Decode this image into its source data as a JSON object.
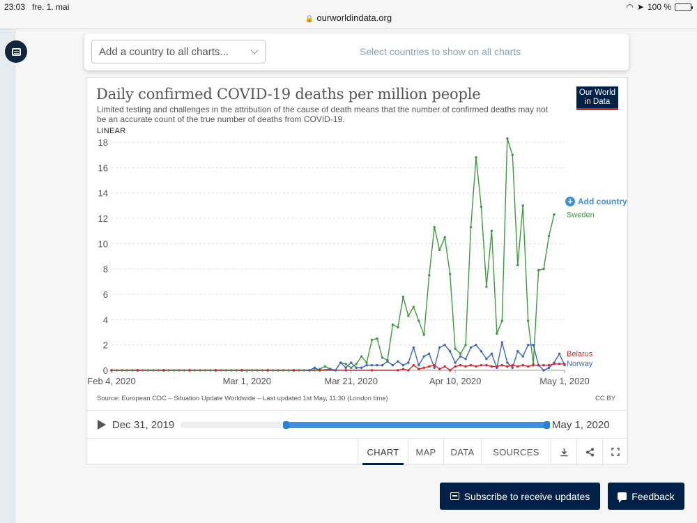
{
  "statusbar": {
    "time": "23:03",
    "date": "fre. 1. mai",
    "battery": "100 %",
    "battery_level": 1.0
  },
  "browser": {
    "url": "ourworldindata.org"
  },
  "selector": {
    "placeholder": "Add a country to all charts...",
    "hint": "Select countries to show on all charts"
  },
  "chart": {
    "title": "Daily confirmed COVID-19 deaths per million people",
    "subtitle": "Limited testing and challenges in the attribution of the cause of death means that the number of confirmed deaths may not be an accurate count of the true number of deaths from COVID-19.",
    "logo": "Our World in Data",
    "scale": "LINEAR",
    "add_country": "Add country",
    "source": "Source: European CDC – Situation Update Worldwide – Last updated 1st May, 11:30 (London time)",
    "license": "CC BY"
  },
  "timeline": {
    "start": "Dec 31, 2019",
    "end": "May 1, 2020",
    "range_start_fraction": 0.285,
    "range_end_fraction": 1.0
  },
  "tabs": [
    "CHART",
    "MAP",
    "DATA",
    "SOURCES"
  ],
  "active_tab": "CHART",
  "footer": {
    "subscribe": "Subscribe to receive updates",
    "feedback": "Feedback"
  },
  "colors": {
    "sweden": "#3c9a3c",
    "belarus": "#cc2a2a",
    "norway": "#3b65b8",
    "accent": "#3d8fe0",
    "navy": "#002147"
  },
  "chart_data": {
    "type": "line",
    "xlabel": "",
    "ylabel": "",
    "x_range": [
      "2020-02-04",
      "2020-05-01"
    ],
    "x_ticks": [
      "Feb 4, 2020",
      "Mar 1, 2020",
      "Mar 21, 2020",
      "Apr 10, 2020",
      "May 1, 2020"
    ],
    "x_tick_dates": [
      "2020-02-04",
      "2020-03-01",
      "2020-03-21",
      "2020-04-10",
      "2020-05-01"
    ],
    "ylim": [
      0,
      18
    ],
    "y_ticks": [
      0,
      2,
      4,
      6,
      8,
      10,
      12,
      14,
      16,
      18
    ],
    "grid": true,
    "legend": "right-end labels",
    "series": [
      {
        "name": "Sweden",
        "color": "#3c9a3c",
        "points": [
          [
            "2020-02-04",
            0
          ],
          [
            "2020-02-05",
            0
          ],
          [
            "2020-02-06",
            0
          ],
          [
            "2020-02-07",
            0
          ],
          [
            "2020-02-08",
            0
          ],
          [
            "2020-02-09",
            0
          ],
          [
            "2020-02-10",
            0
          ],
          [
            "2020-02-11",
            0
          ],
          [
            "2020-02-12",
            0
          ],
          [
            "2020-02-13",
            0
          ],
          [
            "2020-02-14",
            0
          ],
          [
            "2020-02-15",
            0
          ],
          [
            "2020-02-16",
            0
          ],
          [
            "2020-02-17",
            0
          ],
          [
            "2020-02-18",
            0
          ],
          [
            "2020-02-19",
            0
          ],
          [
            "2020-02-20",
            0
          ],
          [
            "2020-02-21",
            0
          ],
          [
            "2020-02-22",
            0
          ],
          [
            "2020-02-23",
            0
          ],
          [
            "2020-02-24",
            0
          ],
          [
            "2020-02-25",
            0
          ],
          [
            "2020-02-26",
            0
          ],
          [
            "2020-02-27",
            0
          ],
          [
            "2020-02-28",
            0
          ],
          [
            "2020-02-29",
            0
          ],
          [
            "2020-03-01",
            0
          ],
          [
            "2020-03-02",
            0
          ],
          [
            "2020-03-03",
            0
          ],
          [
            "2020-03-04",
            0
          ],
          [
            "2020-03-05",
            0
          ],
          [
            "2020-03-06",
            0
          ],
          [
            "2020-03-07",
            0
          ],
          [
            "2020-03-08",
            0
          ],
          [
            "2020-03-09",
            0
          ],
          [
            "2020-03-10",
            0
          ],
          [
            "2020-03-11",
            0
          ],
          [
            "2020-03-12",
            0
          ],
          [
            "2020-03-13",
            0
          ],
          [
            "2020-03-14",
            0
          ],
          [
            "2020-03-15",
            0.1
          ],
          [
            "2020-03-16",
            0.3
          ],
          [
            "2020-03-17",
            0.1
          ],
          [
            "2020-03-18",
            0
          ],
          [
            "2020-03-19",
            0.6
          ],
          [
            "2020-03-20",
            0.5
          ],
          [
            "2020-03-21",
            0.2
          ],
          [
            "2020-03-22",
            0.5
          ],
          [
            "2020-03-23",
            1.1
          ],
          [
            "2020-03-24",
            0.6
          ],
          [
            "2020-03-25",
            2.4
          ],
          [
            "2020-03-26",
            2.5
          ],
          [
            "2020-03-27",
            1.0
          ],
          [
            "2020-03-28",
            0.8
          ],
          [
            "2020-03-29",
            3.6
          ],
          [
            "2020-03-30",
            3.4
          ],
          [
            "2020-03-31",
            5.8
          ],
          [
            "2020-04-01",
            4.3
          ],
          [
            "2020-04-02",
            5.0
          ],
          [
            "2020-04-03",
            3.9
          ],
          [
            "2020-04-04",
            2.8
          ],
          [
            "2020-04-05",
            7.5
          ],
          [
            "2020-04-06",
            11.3
          ],
          [
            "2020-04-07",
            9.5
          ],
          [
            "2020-04-08",
            10.5
          ],
          [
            "2020-04-09",
            7.6
          ],
          [
            "2020-04-10",
            1.7
          ],
          [
            "2020-04-11",
            1.3
          ],
          [
            "2020-04-12",
            2.0
          ],
          [
            "2020-04-13",
            11.3
          ],
          [
            "2020-04-14",
            16.8
          ],
          [
            "2020-04-15",
            12.9
          ],
          [
            "2020-04-16",
            6.6
          ],
          [
            "2020-04-17",
            11.0
          ],
          [
            "2020-04-18",
            2.9
          ],
          [
            "2020-04-19",
            3.9
          ],
          [
            "2020-04-20",
            18.3
          ],
          [
            "2020-04-21",
            17.0
          ],
          [
            "2020-04-22",
            8.3
          ],
          [
            "2020-04-23",
            13.0
          ],
          [
            "2020-04-24",
            3.9
          ],
          [
            "2020-04-25",
            0.5
          ],
          [
            "2020-04-26",
            7.9
          ],
          [
            "2020-04-27",
            8.0
          ],
          [
            "2020-04-28",
            10.6
          ],
          [
            "2020-04-29",
            12.3
          ]
        ]
      },
      {
        "name": "Norway",
        "color": "#3b65b8",
        "points": [
          [
            "2020-02-04",
            0
          ],
          [
            "2020-02-09",
            0
          ],
          [
            "2020-02-14",
            0
          ],
          [
            "2020-02-19",
            0
          ],
          [
            "2020-02-24",
            0
          ],
          [
            "2020-02-29",
            0
          ],
          [
            "2020-03-05",
            0
          ],
          [
            "2020-03-10",
            0
          ],
          [
            "2020-03-13",
            0
          ],
          [
            "2020-03-14",
            0.2
          ],
          [
            "2020-03-15",
            0
          ],
          [
            "2020-03-17",
            0.1
          ],
          [
            "2020-03-18",
            0
          ],
          [
            "2020-03-19",
            0.6
          ],
          [
            "2020-03-20",
            0.2
          ],
          [
            "2020-03-21",
            0.6
          ],
          [
            "2020-03-22",
            0.2
          ],
          [
            "2020-03-23",
            0.2
          ],
          [
            "2020-03-24",
            0.4
          ],
          [
            "2020-03-25",
            0.4
          ],
          [
            "2020-03-26",
            0.4
          ],
          [
            "2020-03-27",
            0.4
          ],
          [
            "2020-03-28",
            0.7
          ],
          [
            "2020-03-29",
            0.4
          ],
          [
            "2020-03-30",
            0.7
          ],
          [
            "2020-03-31",
            0.4
          ],
          [
            "2020-04-01",
            0.6
          ],
          [
            "2020-04-02",
            1.8
          ],
          [
            "2020-04-03",
            0.4
          ],
          [
            "2020-04-04",
            1.1
          ],
          [
            "2020-04-05",
            1.3
          ],
          [
            "2020-04-06",
            0.2
          ],
          [
            "2020-04-07",
            1.8
          ],
          [
            "2020-04-08",
            2.0
          ],
          [
            "2020-04-09",
            1.5
          ],
          [
            "2020-04-10",
            0.6
          ],
          [
            "2020-04-11",
            1.1
          ],
          [
            "2020-04-12",
            0.9
          ],
          [
            "2020-04-13",
            1.8
          ],
          [
            "2020-04-14",
            2.0
          ],
          [
            "2020-04-15",
            1.5
          ],
          [
            "2020-04-16",
            0.9
          ],
          [
            "2020-04-17",
            1.3
          ],
          [
            "2020-04-18",
            0.2
          ],
          [
            "2020-04-19",
            2.2
          ],
          [
            "2020-04-20",
            0.6
          ],
          [
            "2020-04-21",
            0.2
          ],
          [
            "2020-04-22",
            1.5
          ],
          [
            "2020-04-23",
            1.1
          ],
          [
            "2020-04-24",
            2.0
          ],
          [
            "2020-04-25",
            2.0
          ],
          [
            "2020-04-26",
            0.4
          ],
          [
            "2020-04-27",
            0
          ],
          [
            "2020-04-28",
            0.2
          ],
          [
            "2020-04-29",
            0.6
          ],
          [
            "2020-04-30",
            1.3
          ],
          [
            "2020-05-01",
            0.4
          ]
        ]
      },
      {
        "name": "Belarus",
        "color": "#cc2a2a",
        "points": [
          [
            "2020-02-04",
            0
          ],
          [
            "2020-02-09",
            0
          ],
          [
            "2020-02-14",
            0
          ],
          [
            "2020-02-19",
            0
          ],
          [
            "2020-02-24",
            0
          ],
          [
            "2020-02-29",
            0
          ],
          [
            "2020-03-05",
            0
          ],
          [
            "2020-03-10",
            0
          ],
          [
            "2020-03-15",
            0
          ],
          [
            "2020-03-20",
            0
          ],
          [
            "2020-03-25",
            0
          ],
          [
            "2020-03-30",
            0
          ],
          [
            "2020-03-31",
            0.1
          ],
          [
            "2020-04-01",
            0
          ],
          [
            "2020-04-02",
            0.4
          ],
          [
            "2020-04-03",
            0.1
          ],
          [
            "2020-04-04",
            0.2
          ],
          [
            "2020-04-05",
            0.3
          ],
          [
            "2020-04-06",
            0.4
          ],
          [
            "2020-04-07",
            0.1
          ],
          [
            "2020-04-08",
            0.3
          ],
          [
            "2020-04-09",
            0
          ],
          [
            "2020-04-10",
            0.3
          ],
          [
            "2020-04-11",
            0.4
          ],
          [
            "2020-04-12",
            0.3
          ],
          [
            "2020-04-13",
            0.4
          ],
          [
            "2020-04-14",
            0.3
          ],
          [
            "2020-04-15",
            0.4
          ],
          [
            "2020-04-16",
            0.4
          ],
          [
            "2020-04-17",
            0.3
          ],
          [
            "2020-04-18",
            0.3
          ],
          [
            "2020-04-19",
            0.4
          ],
          [
            "2020-04-20",
            0.3
          ],
          [
            "2020-04-21",
            0.4
          ],
          [
            "2020-04-22",
            0.3
          ],
          [
            "2020-04-23",
            0.4
          ],
          [
            "2020-04-24",
            0.3
          ],
          [
            "2020-04-25",
            0.4
          ],
          [
            "2020-04-26",
            0.4
          ],
          [
            "2020-04-27",
            0.4
          ],
          [
            "2020-04-28",
            0.4
          ],
          [
            "2020-04-29",
            0.5
          ],
          [
            "2020-04-30",
            0.5
          ],
          [
            "2020-05-01",
            0.5
          ]
        ]
      }
    ]
  }
}
